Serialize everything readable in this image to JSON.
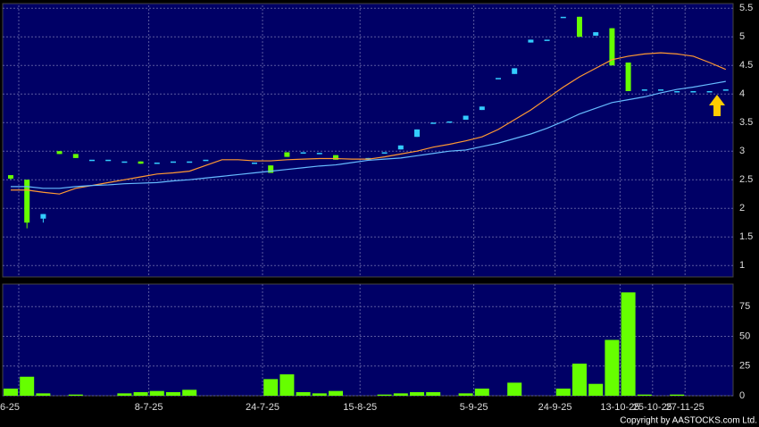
{
  "chart_data": [
    {
      "type": "candlestick",
      "open": [
        2.58,
        2.5,
        1.82,
        3.0,
        2.95,
        2.85,
        2.85,
        2.82,
        2.82,
        2.8,
        2.82,
        2.82,
        2.85,
        null,
        null,
        2.8,
        2.75,
        2.98,
        2.98,
        2.97,
        2.93,
        null,
        2.85,
        2.98,
        3.03,
        3.25,
        3.5,
        3.52,
        3.55,
        3.72,
        4.28,
        4.35,
        4.9,
        4.95,
        5.35,
        5.35,
        5.02,
        5.15,
        4.55,
        4.08,
        4.08,
        4.05,
        4.05,
        4.05,
        4.08
      ],
      "high": [
        2.58,
        2.5,
        1.9,
        3.0,
        2.95,
        2.85,
        2.85,
        2.82,
        2.82,
        2.8,
        2.82,
        2.82,
        2.85,
        null,
        null,
        2.8,
        2.75,
        2.98,
        2.98,
        2.97,
        2.93,
        null,
        2.88,
        2.98,
        3.1,
        3.38,
        3.5,
        3.52,
        3.62,
        3.78,
        4.28,
        4.45,
        4.95,
        4.95,
        5.35,
        5.35,
        5.08,
        5.15,
        4.55,
        4.08,
        4.08,
        4.05,
        4.05,
        4.05,
        4.08
      ],
      "low": [
        2.5,
        1.65,
        1.75,
        2.95,
        2.88,
        2.85,
        2.85,
        2.82,
        2.78,
        2.8,
        2.82,
        2.82,
        2.85,
        null,
        null,
        2.8,
        2.62,
        2.9,
        2.98,
        2.97,
        2.85,
        null,
        2.85,
        2.98,
        3.03,
        3.25,
        3.5,
        3.52,
        3.55,
        3.72,
        4.28,
        4.35,
        4.9,
        4.95,
        5.35,
        5.0,
        5.02,
        4.5,
        4.05,
        4.08,
        4.08,
        4.05,
        4.05,
        4.05,
        4.08
      ],
      "close": [
        2.52,
        1.75,
        1.9,
        2.95,
        2.88,
        2.85,
        2.85,
        2.82,
        2.78,
        2.8,
        2.82,
        2.82,
        2.85,
        null,
        null,
        2.8,
        2.62,
        2.9,
        2.98,
        2.97,
        2.85,
        null,
        2.88,
        2.98,
        3.1,
        3.38,
        3.5,
        3.52,
        3.62,
        3.78,
        4.28,
        4.45,
        4.95,
        4.95,
        5.35,
        5.0,
        5.08,
        4.5,
        4.05,
        4.08,
        4.08,
        4.05,
        4.05,
        4.05,
        4.08
      ],
      "up_color": "#33ccff",
      "down_color": "#66ff00",
      "series": [
        {
          "color": "#ff9933",
          "values": [
            2.32,
            2.32,
            2.28,
            2.25,
            2.35,
            2.4,
            2.45,
            2.5,
            2.55,
            2.6,
            2.62,
            2.65,
            2.75,
            2.85,
            2.85,
            2.83,
            2.83,
            2.85,
            2.86,
            2.87,
            2.87,
            2.86,
            2.86,
            2.9,
            2.95,
            3.0,
            3.07,
            3.12,
            3.18,
            3.25,
            3.38,
            3.55,
            3.72,
            3.92,
            4.12,
            4.3,
            4.45,
            4.6,
            4.66,
            4.7,
            4.72,
            4.7,
            4.66,
            4.55,
            4.43
          ]
        },
        {
          "color": "#66bbff",
          "values": [
            2.38,
            2.38,
            2.35,
            2.35,
            2.38,
            2.4,
            2.41,
            2.43,
            2.44,
            2.45,
            2.48,
            2.5,
            2.53,
            2.56,
            2.59,
            2.62,
            2.65,
            2.68,
            2.71,
            2.74,
            2.76,
            2.8,
            2.84,
            2.86,
            2.88,
            2.92,
            2.96,
            3.0,
            3.02,
            3.08,
            3.14,
            3.22,
            3.3,
            3.4,
            3.52,
            3.65,
            3.75,
            3.85,
            3.9,
            3.95,
            4.02,
            4.08,
            4.12,
            4.17,
            4.22
          ]
        }
      ],
      "ylim": [
        0.8,
        5.55
      ],
      "yticks": [
        1,
        1.5,
        2,
        2.5,
        3,
        3.5,
        4,
        4.5,
        5,
        5.5
      ],
      "grid": true
    },
    {
      "type": "bar",
      "categories": [
        "6-25",
        null,
        null,
        null,
        null,
        null,
        null,
        null,
        "8-7-25",
        null,
        null,
        null,
        null,
        null,
        null,
        "24-7-25",
        null,
        null,
        null,
        null,
        null,
        "15-8-25",
        null,
        null,
        null,
        null,
        null,
        null,
        "5-9-25",
        null,
        null,
        null,
        null,
        "24-9-25",
        null,
        null,
        null,
        "13-10-25",
        null,
        "25-10-25",
        null,
        "27-11-25",
        null,
        null,
        null
      ],
      "values": [
        6,
        16,
        2,
        0,
        1,
        0,
        0,
        2,
        3,
        4,
        3,
        5,
        0,
        null,
        null,
        0,
        14,
        18,
        3,
        2,
        4,
        null,
        0,
        1,
        2,
        3,
        3,
        0,
        2,
        6,
        0,
        11,
        0,
        0,
        6,
        27,
        10,
        47,
        87,
        1,
        0,
        1,
        0,
        0,
        0
      ],
      "color": "#66ff00",
      "ylim": [
        0,
        94
      ],
      "yticks": [
        0,
        25,
        50,
        75
      ],
      "grid": true
    }
  ],
  "copyright": "Copyright by AASTOCKS.com Ltd."
}
